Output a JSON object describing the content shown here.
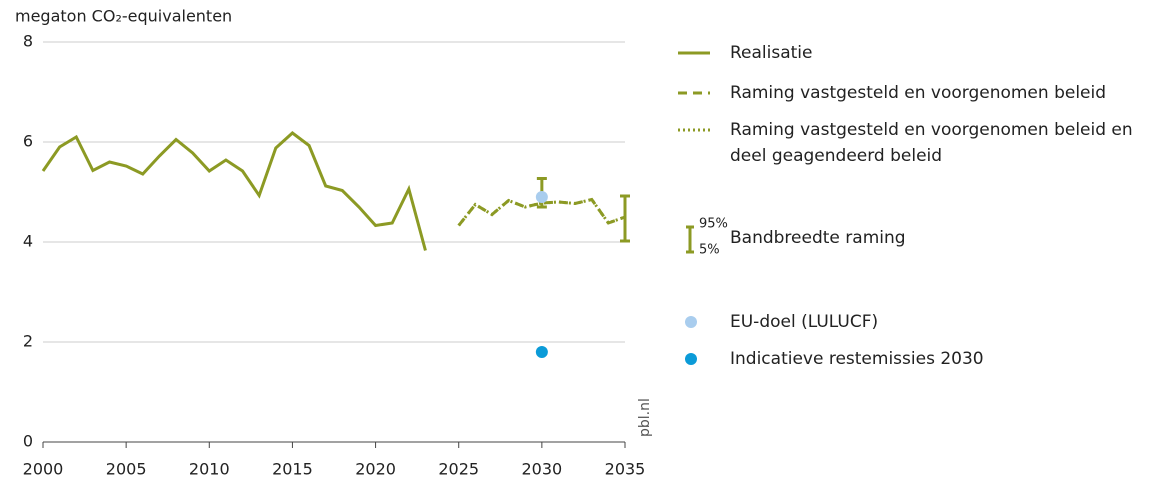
{
  "chart_data": {
    "type": "line",
    "ylabel": "megaton CO₂-equivalenten",
    "annotation": "pbl.nl",
    "xlim": [
      2000,
      2035
    ],
    "xticks": [
      2000,
      2005,
      2010,
      2015,
      2020,
      2025,
      2030,
      2035
    ],
    "ylim": [
      0,
      8
    ],
    "yticks": [
      0,
      2,
      4,
      6,
      8
    ],
    "grid": true,
    "series": [
      {
        "name": "Realisatie",
        "color": "#8c9a24",
        "style": "solid",
        "x": [
          2000,
          2001,
          2002,
          2003,
          2004,
          2005,
          2006,
          2007,
          2008,
          2009,
          2010,
          2011,
          2012,
          2013,
          2014,
          2015,
          2016,
          2017,
          2018,
          2019,
          2020,
          2021,
          2022,
          2023
        ],
        "values": [
          5.42,
          5.9,
          6.1,
          5.43,
          5.6,
          5.52,
          5.36,
          5.72,
          6.05,
          5.78,
          5.42,
          5.64,
          5.42,
          4.93,
          5.88,
          6.18,
          5.93,
          5.12,
          5.03,
          4.7,
          4.33,
          4.38,
          5.06,
          3.83
        ]
      },
      {
        "name": "Raming vastgesteld en voorgenomen beleid",
        "color": "#8c9a24",
        "style": "dashed",
        "x": [
          2025,
          2026,
          2027,
          2028,
          2029,
          2030,
          2031,
          2032,
          2033,
          2034,
          2035
        ],
        "values": [
          4.33,
          4.75,
          4.55,
          4.83,
          4.7,
          4.78,
          4.8,
          4.77,
          4.85,
          4.38,
          4.5
        ]
      },
      {
        "name": "Raming vastgesteld en voorgenomen beleid en deel geagendeerd beleid",
        "color": "#8c9a24",
        "style": "dotted",
        "x": [
          2025,
          2026,
          2027,
          2028,
          2029,
          2030,
          2031,
          2032,
          2033,
          2034,
          2035
        ],
        "values": [
          4.33,
          4.75,
          4.55,
          4.83,
          4.7,
          4.78,
          4.8,
          4.77,
          4.85,
          4.38,
          4.5
        ]
      }
    ],
    "band": {
      "name": "Bandbreedte raming",
      "upper_label": "95%",
      "lower_label": "5%",
      "color": "#8c9a24",
      "x": [
        2030,
        2035
      ],
      "low": [
        4.7,
        4.02
      ],
      "high": [
        5.27,
        4.92
      ]
    },
    "points": [
      {
        "name": "EU-doel (LULUCF)",
        "color": "#a9cdee",
        "x": [
          2030
        ],
        "values": [
          4.9
        ]
      },
      {
        "name": "Indicatieve restemissies 2030",
        "color": "#0b9bd8",
        "x": [
          2030
        ],
        "values": [
          1.8
        ]
      }
    ]
  }
}
